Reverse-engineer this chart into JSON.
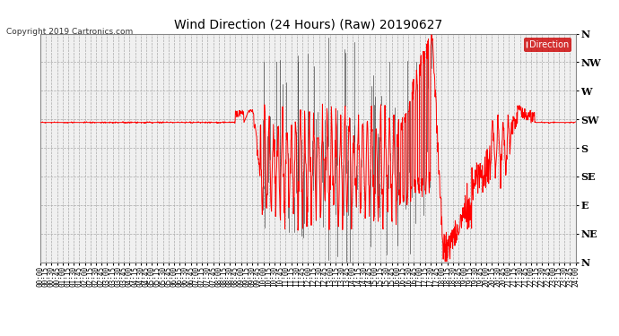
{
  "title": "Wind Direction (24 Hours) (Raw) 20190627",
  "copyright": "Copyright 2019 Cartronics.com",
  "legend_label": "Direction",
  "legend_bg": "#cc0000",
  "background_color": "#ffffff",
  "plot_bg": "#f0f0f0",
  "line_color": "#ff0000",
  "dark_line_color": "#222222",
  "grid_color": "#aaaaaa",
  "y_labels": [
    "N",
    "NE",
    "E",
    "SE",
    "S",
    "SW",
    "W",
    "NW",
    "N"
  ],
  "y_values": [
    0,
    45,
    90,
    135,
    180,
    225,
    270,
    315,
    360
  ],
  "title_fontsize": 10,
  "tick_fontsize": 5.5,
  "ylabel_fontsize": 8,
  "copyright_fontsize": 6.5
}
